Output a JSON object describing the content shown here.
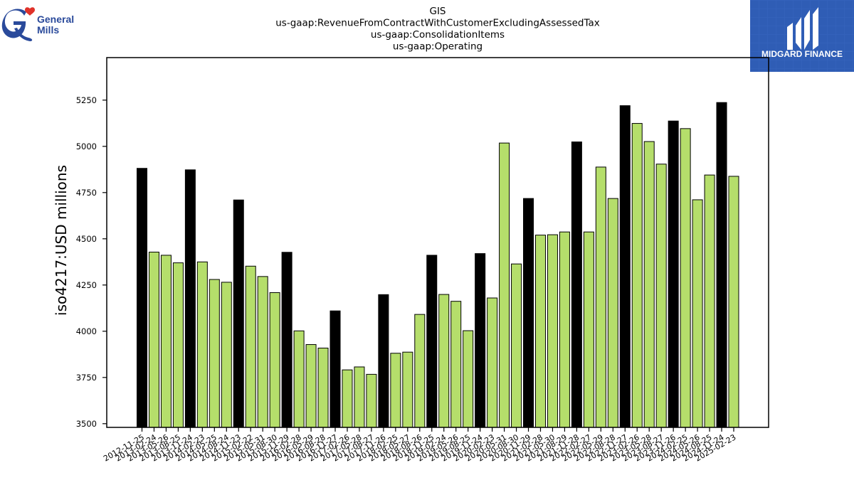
{
  "brand_left": {
    "name": "General Mills",
    "line1": "General",
    "line2": "Mills"
  },
  "brand_right": {
    "name": "MIDGARD FINANCE"
  },
  "chart_data": {
    "type": "bar",
    "title": [
      "GIS",
      "us-gaap:RevenueFromContractWithCustomerExcludingAssessedTax",
      "us-gaap:ConsolidationItems",
      "us-gaap:Operating"
    ],
    "xlabel": "",
    "ylabel": "iso4217:USD  millions",
    "ylim": [
      3480,
      5480
    ],
    "yticks": [
      3500,
      3750,
      4000,
      4250,
      4500,
      4750,
      5000,
      5250
    ],
    "grid": false,
    "colors": {
      "annual": "#000000",
      "quarter": "#b5de6b",
      "edge": "#000000"
    },
    "categories": [
      "2012-11-25",
      "2013-02-24",
      "2013-05-26",
      "2013-08-25",
      "2013-11-24",
      "2014-02-23",
      "2014-05-25",
      "2014-08-24",
      "2014-11-23",
      "2015-02-22",
      "2015-05-31",
      "2015-08-30",
      "2015-11-29",
      "2016-02-28",
      "2016-05-29",
      "2016-08-28",
      "2016-11-27",
      "2017-02-26",
      "2017-05-28",
      "2017-08-27",
      "2017-11-26",
      "2018-02-25",
      "2018-05-27",
      "2018-08-26",
      "2018-11-25",
      "2019-02-24",
      "2019-05-26",
      "2019-08-25",
      "2019-11-24",
      "2020-02-23",
      "2020-05-31",
      "2020-08-30",
      "2020-11-29",
      "2021-02-28",
      "2021-05-30",
      "2021-08-29",
      "2021-11-28",
      "2022-02-27",
      "2022-05-29",
      "2022-08-28",
      "2022-11-27",
      "2023-02-26",
      "2023-05-28",
      "2023-08-27",
      "2023-11-26",
      "2024-02-25",
      "2024-05-26",
      "2024-08-25",
      "2024-11-24",
      "2025-02-23"
    ],
    "values": [
      4881,
      4428,
      4411,
      4370,
      4873,
      4375,
      4280,
      4265,
      4710,
      4352,
      4296,
      4209,
      4427,
      4002,
      3928,
      3909,
      4110,
      3791,
      3807,
      3767,
      4198,
      3881,
      3887,
      4091,
      4411,
      4199,
      4162,
      4003,
      4420,
      4180,
      5018,
      4364,
      4718,
      4520,
      4522,
      4537,
      5024,
      4537,
      4888,
      4718,
      5220,
      5124,
      5026,
      4904,
      5137,
      5096,
      4711,
      4845,
      5237,
      4838
    ],
    "is_annual": [
      1,
      0,
      0,
      0,
      1,
      0,
      0,
      0,
      1,
      0,
      0,
      0,
      1,
      0,
      0,
      0,
      1,
      0,
      0,
      0,
      1,
      0,
      0,
      0,
      1,
      0,
      0,
      0,
      1,
      0,
      0,
      0,
      1,
      0,
      0,
      0,
      1,
      0,
      0,
      0,
      1,
      0,
      0,
      0,
      1,
      0,
      0,
      0,
      1,
      0
    ]
  }
}
